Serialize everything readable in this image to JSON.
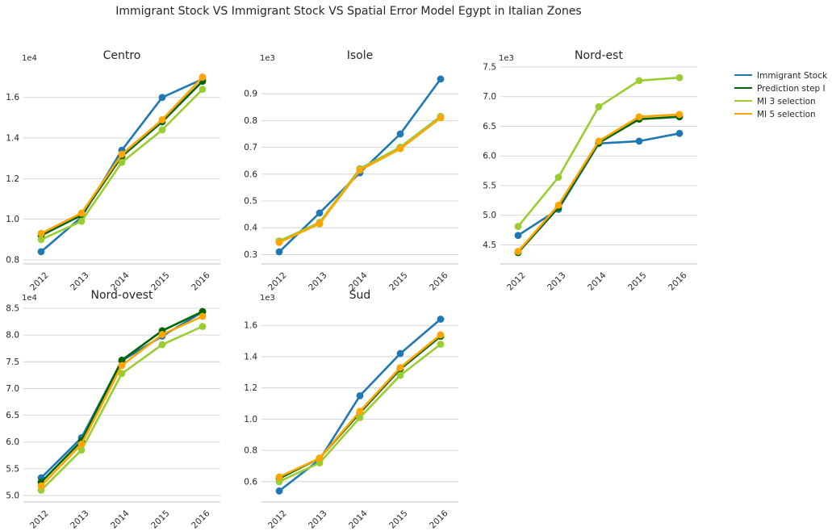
{
  "title": "Immigrant Stock VS Immigrant Stock VS Spatial Error Model Egypt in Italian Zones",
  "colors": {
    "Immigrant Stock": "#1f77b4",
    "Prediction step I": "#006400",
    "MI 3 selection": "#9acd32",
    "MI 5 selection": "#ffa500"
  },
  "legend": {
    "placement": "right",
    "entries": [
      "Immigrant Stock",
      "Prediction step I",
      "MI 3 selection",
      "MI 5 selection"
    ]
  },
  "chart_data": [
    {
      "type": "line",
      "title": "Centro",
      "offset_label": "1e4",
      "categories": [
        "2012",
        "2013",
        "2014",
        "2015",
        "2016"
      ],
      "ylim": [
        0.78,
        1.75
      ],
      "yticks": [
        0.8,
        1.0,
        1.2,
        1.4,
        1.6
      ],
      "ytick_labels": [
        "0.8",
        "1.0",
        "1.2",
        "1.4",
        "1.6"
      ],
      "series": [
        {
          "name": "Immigrant Stock",
          "values": [
            0.84,
            1.01,
            1.34,
            1.6,
            1.69
          ]
        },
        {
          "name": "Prediction step I",
          "values": [
            0.92,
            1.02,
            1.31,
            1.48,
            1.68
          ]
        },
        {
          "name": "MI 3 selection",
          "values": [
            0.9,
            0.99,
            1.28,
            1.44,
            1.64
          ]
        },
        {
          "name": "MI 5 selection",
          "values": [
            0.93,
            1.03,
            1.32,
            1.49,
            1.7
          ]
        }
      ]
    },
    {
      "type": "line",
      "title": "Isole",
      "offset_label": "1e3",
      "categories": [
        "2012",
        "2013",
        "2014",
        "2015",
        "2016"
      ],
      "ylim": [
        0.265,
        1.0
      ],
      "yticks": [
        0.3,
        0.4,
        0.5,
        0.6,
        0.7,
        0.8,
        0.9
      ],
      "ytick_labels": [
        "0.3",
        "0.4",
        "0.5",
        "0.6",
        "0.7",
        "0.8",
        "0.9"
      ],
      "series": [
        {
          "name": "Immigrant Stock",
          "values": [
            0.31,
            0.455,
            0.605,
            0.75,
            0.955
          ]
        },
        {
          "name": "Prediction step I",
          "values": [
            0.35,
            0.415,
            0.62,
            0.7,
            0.815
          ]
        },
        {
          "name": "MI 3 selection",
          "values": [
            0.35,
            0.42,
            0.62,
            0.7,
            0.815
          ]
        },
        {
          "name": "MI 5 selection",
          "values": [
            0.345,
            0.415,
            0.615,
            0.695,
            0.81
          ]
        }
      ]
    },
    {
      "type": "line",
      "title": "Nord-est",
      "offset_label": "1e3",
      "categories": [
        "2012",
        "2013",
        "2014",
        "2015",
        "2016"
      ],
      "ylim": [
        4.18,
        7.5
      ],
      "yticks": [
        4.5,
        5.0,
        5.5,
        6.0,
        6.5,
        7.0,
        7.5
      ],
      "ytick_labels": [
        "4.5",
        "5.0",
        "5.5",
        "6.0",
        "6.5",
        "7.0",
        "7.5"
      ],
      "series": [
        {
          "name": "Immigrant Stock",
          "values": [
            4.66,
            5.1,
            6.21,
            6.25,
            6.38
          ]
        },
        {
          "name": "Prediction step I",
          "values": [
            4.37,
            5.13,
            6.22,
            6.62,
            6.66
          ]
        },
        {
          "name": "MI 3 selection",
          "values": [
            4.81,
            5.64,
            6.83,
            7.27,
            7.32
          ]
        },
        {
          "name": "MI 5 selection",
          "values": [
            4.39,
            5.17,
            6.25,
            6.66,
            6.7
          ]
        }
      ]
    },
    {
      "type": "line",
      "title": "Nord-ovest",
      "offset_label": "1e4",
      "categories": [
        "2012",
        "2013",
        "2014",
        "2015",
        "2016"
      ],
      "ylim": [
        4.88,
        8.53
      ],
      "yticks": [
        5.0,
        5.5,
        6.0,
        6.5,
        7.0,
        7.5,
        8.0,
        8.5
      ],
      "ytick_labels": [
        "5.0",
        "5.5",
        "6.0",
        "6.5",
        "7.0",
        "7.5",
        "8.0",
        "8.5"
      ],
      "series": [
        {
          "name": "Immigrant Stock",
          "values": [
            5.33,
            6.08,
            7.52,
            7.98,
            8.43
          ]
        },
        {
          "name": "Prediction step I",
          "values": [
            5.25,
            6.02,
            7.53,
            8.08,
            8.44
          ]
        },
        {
          "name": "MI 3 selection",
          "values": [
            5.1,
            5.85,
            7.28,
            7.82,
            8.16
          ]
        },
        {
          "name": "MI 5 selection",
          "values": [
            5.18,
            5.96,
            7.43,
            8.01,
            8.35
          ]
        }
      ]
    },
    {
      "type": "line",
      "title": "Sud",
      "offset_label": "1e3",
      "categories": [
        "2012",
        "2013",
        "2014",
        "2015",
        "2016"
      ],
      "ylim": [
        0.47,
        1.72
      ],
      "yticks": [
        0.6,
        0.8,
        1.0,
        1.2,
        1.4,
        1.6
      ],
      "ytick_labels": [
        "0.6",
        "0.8",
        "1.0",
        "1.2",
        "1.4",
        "1.6"
      ],
      "series": [
        {
          "name": "Immigrant Stock",
          "values": [
            0.54,
            0.74,
            1.15,
            1.42,
            1.64
          ]
        },
        {
          "name": "Prediction step I",
          "values": [
            0.62,
            0.75,
            1.04,
            1.32,
            1.53
          ]
        },
        {
          "name": "MI 3 selection",
          "values": [
            0.6,
            0.72,
            1.01,
            1.28,
            1.48
          ]
        },
        {
          "name": "MI 5 selection",
          "values": [
            0.63,
            0.75,
            1.05,
            1.33,
            1.54
          ]
        }
      ]
    }
  ]
}
